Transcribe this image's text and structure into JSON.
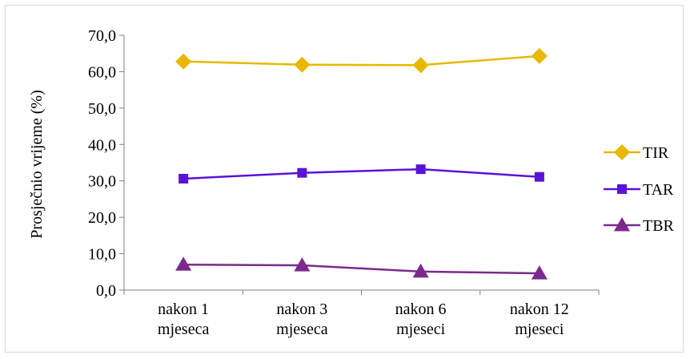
{
  "chart_data": {
    "type": "line",
    "categories": [
      [
        "nakon 1",
        "mjeseca"
      ],
      [
        "nakon 3",
        "mjeseca"
      ],
      [
        "nakon 6",
        "mjeseci"
      ],
      [
        "nakon 12",
        "mjeseci"
      ]
    ],
    "series": [
      {
        "name": "TIR",
        "values": [
          62.8,
          61.9,
          61.8,
          64.3
        ],
        "color": "#e8b800",
        "marker": "diamond"
      },
      {
        "name": "TAR",
        "values": [
          30.6,
          32.2,
          33.2,
          31.1
        ],
        "color": "#5b12d8",
        "marker": "square"
      },
      {
        "name": "TBR",
        "values": [
          7.0,
          6.8,
          5.1,
          4.6
        ],
        "color": "#7b2a8c",
        "marker": "triangle"
      }
    ],
    "title": "",
    "xlabel": "",
    "ylabel": "Prosječnio vrijeme (%)",
    "ylim": [
      0,
      70
    ],
    "yticks": [
      "0,0",
      "10,0",
      "20,0",
      "30,0",
      "40,0",
      "50,0",
      "60,0",
      "70,0"
    ],
    "grid": false,
    "legend_position": "right"
  }
}
